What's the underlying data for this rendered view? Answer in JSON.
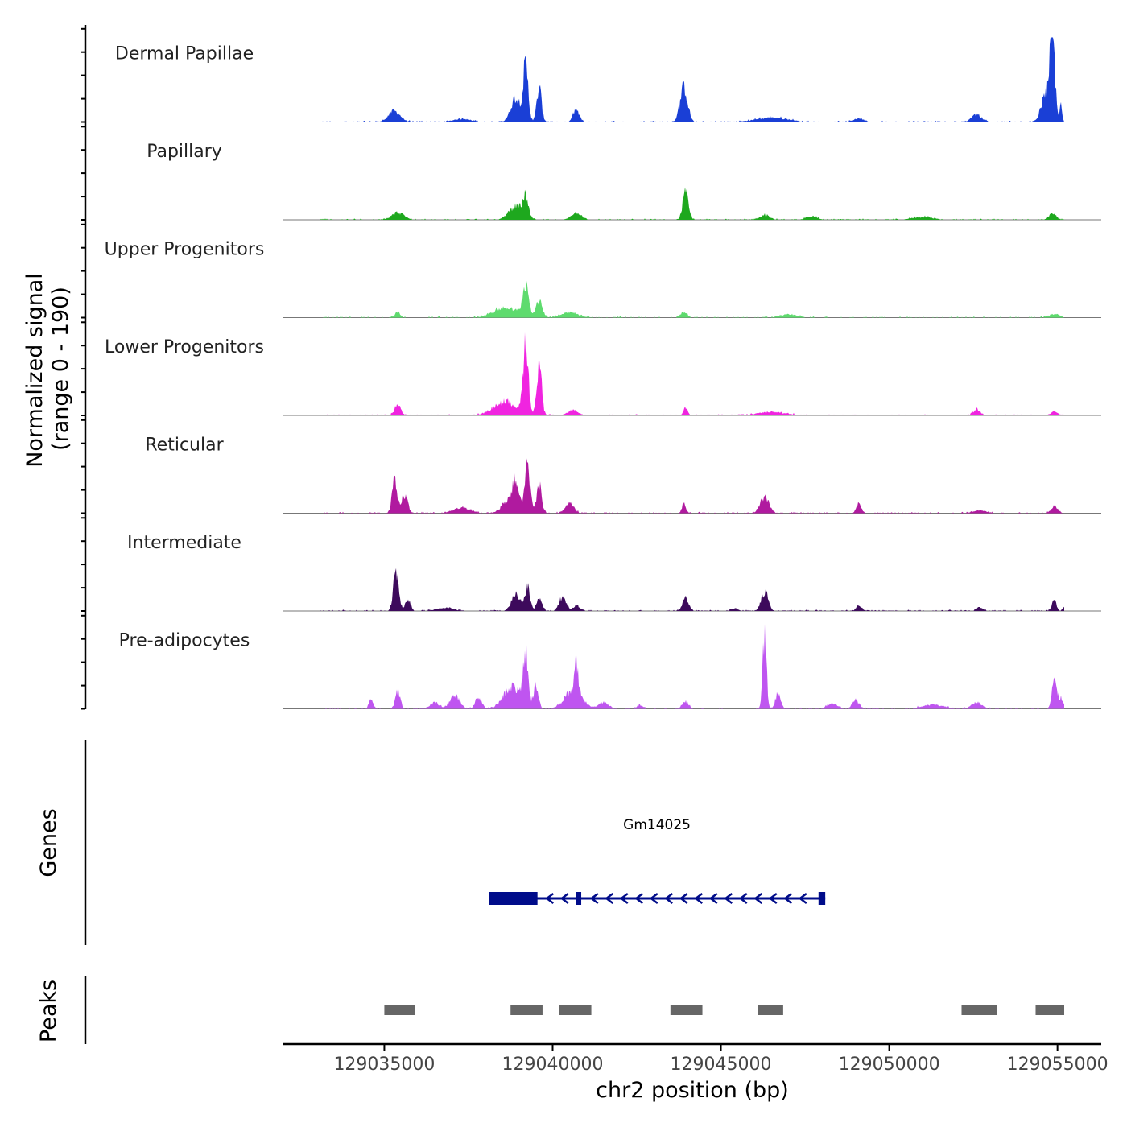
{
  "chart_data": {
    "type": "area",
    "title": "",
    "ylabel": "Normalized signal",
    "ylabel_range": "(range 0 - 190)",
    "ylim": [
      0,
      190
    ],
    "xlabel": "chr2 position (bp)",
    "xlim": [
      129032000,
      129056300
    ],
    "xticks": [
      129035000,
      129040000,
      129045000,
      129050000,
      129055000
    ],
    "xtick_labels": [
      "129035000",
      "129040000",
      "129045000",
      "129050000",
      "129055000"
    ],
    "region_start": 129033100,
    "region_end": 129055200,
    "series": [
      {
        "name": "Dermal Papillae",
        "color": "#1a3fd6",
        "peaks": [
          {
            "pos": 129035300,
            "h": 24,
            "w": 350
          },
          {
            "pos": 129037300,
            "h": 7,
            "w": 500
          },
          {
            "pos": 129038900,
            "h": 55,
            "w": 280
          },
          {
            "pos": 129039200,
            "h": 120,
            "w": 150
          },
          {
            "pos": 129039600,
            "h": 75,
            "w": 140
          },
          {
            "pos": 129040700,
            "h": 28,
            "w": 180
          },
          {
            "pos": 129043900,
            "h": 78,
            "w": 220
          },
          {
            "pos": 129046500,
            "h": 10,
            "w": 900
          },
          {
            "pos": 129049100,
            "h": 8,
            "w": 300
          },
          {
            "pos": 129052600,
            "h": 17,
            "w": 280
          },
          {
            "pos": 129054650,
            "h": 60,
            "w": 260
          },
          {
            "pos": 129054850,
            "h": 185,
            "w": 150
          },
          {
            "pos": 129055100,
            "h": 38,
            "w": 70
          }
        ]
      },
      {
        "name": "Papillary",
        "color": "#1ea81e",
        "peaks": [
          {
            "pos": 129035400,
            "h": 16,
            "w": 350
          },
          {
            "pos": 129038900,
            "h": 30,
            "w": 400
          },
          {
            "pos": 129039200,
            "h": 45,
            "w": 160
          },
          {
            "pos": 129040700,
            "h": 16,
            "w": 300
          },
          {
            "pos": 129043950,
            "h": 58,
            "w": 170
          },
          {
            "pos": 129046300,
            "h": 10,
            "w": 300
          },
          {
            "pos": 129047700,
            "h": 8,
            "w": 300
          },
          {
            "pos": 129051000,
            "h": 6,
            "w": 600
          },
          {
            "pos": 129054850,
            "h": 14,
            "w": 200
          }
        ]
      },
      {
        "name": "Upper Progenitors",
        "color": "#5edb6e",
        "peaks": [
          {
            "pos": 129035400,
            "h": 12,
            "w": 150
          },
          {
            "pos": 129038600,
            "h": 22,
            "w": 700
          },
          {
            "pos": 129039200,
            "h": 72,
            "w": 180
          },
          {
            "pos": 129039600,
            "h": 35,
            "w": 200
          },
          {
            "pos": 129040500,
            "h": 12,
            "w": 500
          },
          {
            "pos": 129043900,
            "h": 12,
            "w": 200
          },
          {
            "pos": 129047000,
            "h": 7,
            "w": 500
          },
          {
            "pos": 129054900,
            "h": 8,
            "w": 300
          }
        ]
      },
      {
        "name": "Lower Progenitors",
        "color": "#f024e0",
        "peaks": [
          {
            "pos": 129035400,
            "h": 22,
            "w": 180
          },
          {
            "pos": 129038600,
            "h": 30,
            "w": 700
          },
          {
            "pos": 129039200,
            "h": 165,
            "w": 150
          },
          {
            "pos": 129039600,
            "h": 120,
            "w": 140
          },
          {
            "pos": 129040600,
            "h": 12,
            "w": 300
          },
          {
            "pos": 129043950,
            "h": 18,
            "w": 120
          },
          {
            "pos": 129046500,
            "h": 8,
            "w": 800
          },
          {
            "pos": 129052600,
            "h": 14,
            "w": 200
          },
          {
            "pos": 129054900,
            "h": 9,
            "w": 200
          }
        ]
      },
      {
        "name": "Reticular",
        "color": "#b01a9f",
        "peaks": [
          {
            "pos": 129035300,
            "h": 68,
            "w": 150
          },
          {
            "pos": 129035600,
            "h": 40,
            "w": 180
          },
          {
            "pos": 129037300,
            "h": 12,
            "w": 500
          },
          {
            "pos": 129038700,
            "h": 28,
            "w": 400
          },
          {
            "pos": 129038900,
            "h": 56,
            "w": 200
          },
          {
            "pos": 129039250,
            "h": 108,
            "w": 160
          },
          {
            "pos": 129039600,
            "h": 60,
            "w": 150
          },
          {
            "pos": 129040500,
            "h": 22,
            "w": 250
          },
          {
            "pos": 129043900,
            "h": 20,
            "w": 120
          },
          {
            "pos": 129046300,
            "h": 38,
            "w": 250
          },
          {
            "pos": 129049100,
            "h": 20,
            "w": 150
          },
          {
            "pos": 129052700,
            "h": 6,
            "w": 400
          },
          {
            "pos": 129054900,
            "h": 15,
            "w": 200
          }
        ]
      },
      {
        "name": "Intermediate",
        "color": "#3d0a5c",
        "peaks": [
          {
            "pos": 129035350,
            "h": 92,
            "w": 160
          },
          {
            "pos": 129035700,
            "h": 28,
            "w": 140
          },
          {
            "pos": 129036800,
            "h": 7,
            "w": 500
          },
          {
            "pos": 129038900,
            "h": 38,
            "w": 250
          },
          {
            "pos": 129039250,
            "h": 55,
            "w": 150
          },
          {
            "pos": 129039600,
            "h": 28,
            "w": 160
          },
          {
            "pos": 129040300,
            "h": 30,
            "w": 200
          },
          {
            "pos": 129040700,
            "h": 12,
            "w": 200
          },
          {
            "pos": 129043950,
            "h": 28,
            "w": 180
          },
          {
            "pos": 129045400,
            "h": 6,
            "w": 200
          },
          {
            "pos": 129046300,
            "h": 44,
            "w": 200
          },
          {
            "pos": 129049100,
            "h": 12,
            "w": 150
          },
          {
            "pos": 129052700,
            "h": 8,
            "w": 200
          },
          {
            "pos": 129054900,
            "h": 30,
            "w": 120
          },
          {
            "pos": 129055200,
            "h": 8,
            "w": 100
          }
        ]
      },
      {
        "name": "Pre-adipocytes",
        "color": "#bf55f0",
        "peaks": [
          {
            "pos": 129034600,
            "h": 22,
            "w": 120
          },
          {
            "pos": 129035400,
            "h": 36,
            "w": 150
          },
          {
            "pos": 129036500,
            "h": 14,
            "w": 250
          },
          {
            "pos": 129037100,
            "h": 28,
            "w": 300
          },
          {
            "pos": 129037800,
            "h": 24,
            "w": 200
          },
          {
            "pos": 129038800,
            "h": 50,
            "w": 500
          },
          {
            "pos": 129039200,
            "h": 115,
            "w": 140
          },
          {
            "pos": 129039500,
            "h": 50,
            "w": 150
          },
          {
            "pos": 129040600,
            "h": 40,
            "w": 500
          },
          {
            "pos": 129040700,
            "h": 68,
            "w": 120
          },
          {
            "pos": 129041500,
            "h": 14,
            "w": 300
          },
          {
            "pos": 129042600,
            "h": 8,
            "w": 200
          },
          {
            "pos": 129043950,
            "h": 14,
            "w": 200
          },
          {
            "pos": 129046300,
            "h": 168,
            "w": 110
          },
          {
            "pos": 129046700,
            "h": 36,
            "w": 150
          },
          {
            "pos": 129048300,
            "h": 12,
            "w": 300
          },
          {
            "pos": 129049000,
            "h": 18,
            "w": 200
          },
          {
            "pos": 129051300,
            "h": 10,
            "w": 600
          },
          {
            "pos": 129052600,
            "h": 14,
            "w": 300
          },
          {
            "pos": 129054900,
            "h": 65,
            "w": 140
          },
          {
            "pos": 129055100,
            "h": 25,
            "w": 150
          }
        ]
      }
    ],
    "genes": [
      {
        "name": "Gm14025",
        "strand": "-",
        "start": 129038100,
        "end": 129048100,
        "color": "#000c8a",
        "exons": [
          [
            129038100,
            129039550
          ],
          [
            129040700,
            129040850
          ],
          [
            129047900,
            129048100
          ]
        ]
      }
    ],
    "genes_label": "Genes",
    "peaks_label": "Peaks",
    "peak_color": "#666666",
    "peak_regions": [
      [
        129035000,
        129035900
      ],
      [
        129038750,
        129039700
      ],
      [
        129040200,
        129041150
      ],
      [
        129043500,
        129044450
      ],
      [
        129046100,
        129046850
      ],
      [
        129052150,
        129053200
      ],
      [
        129054350,
        129055200
      ]
    ]
  }
}
